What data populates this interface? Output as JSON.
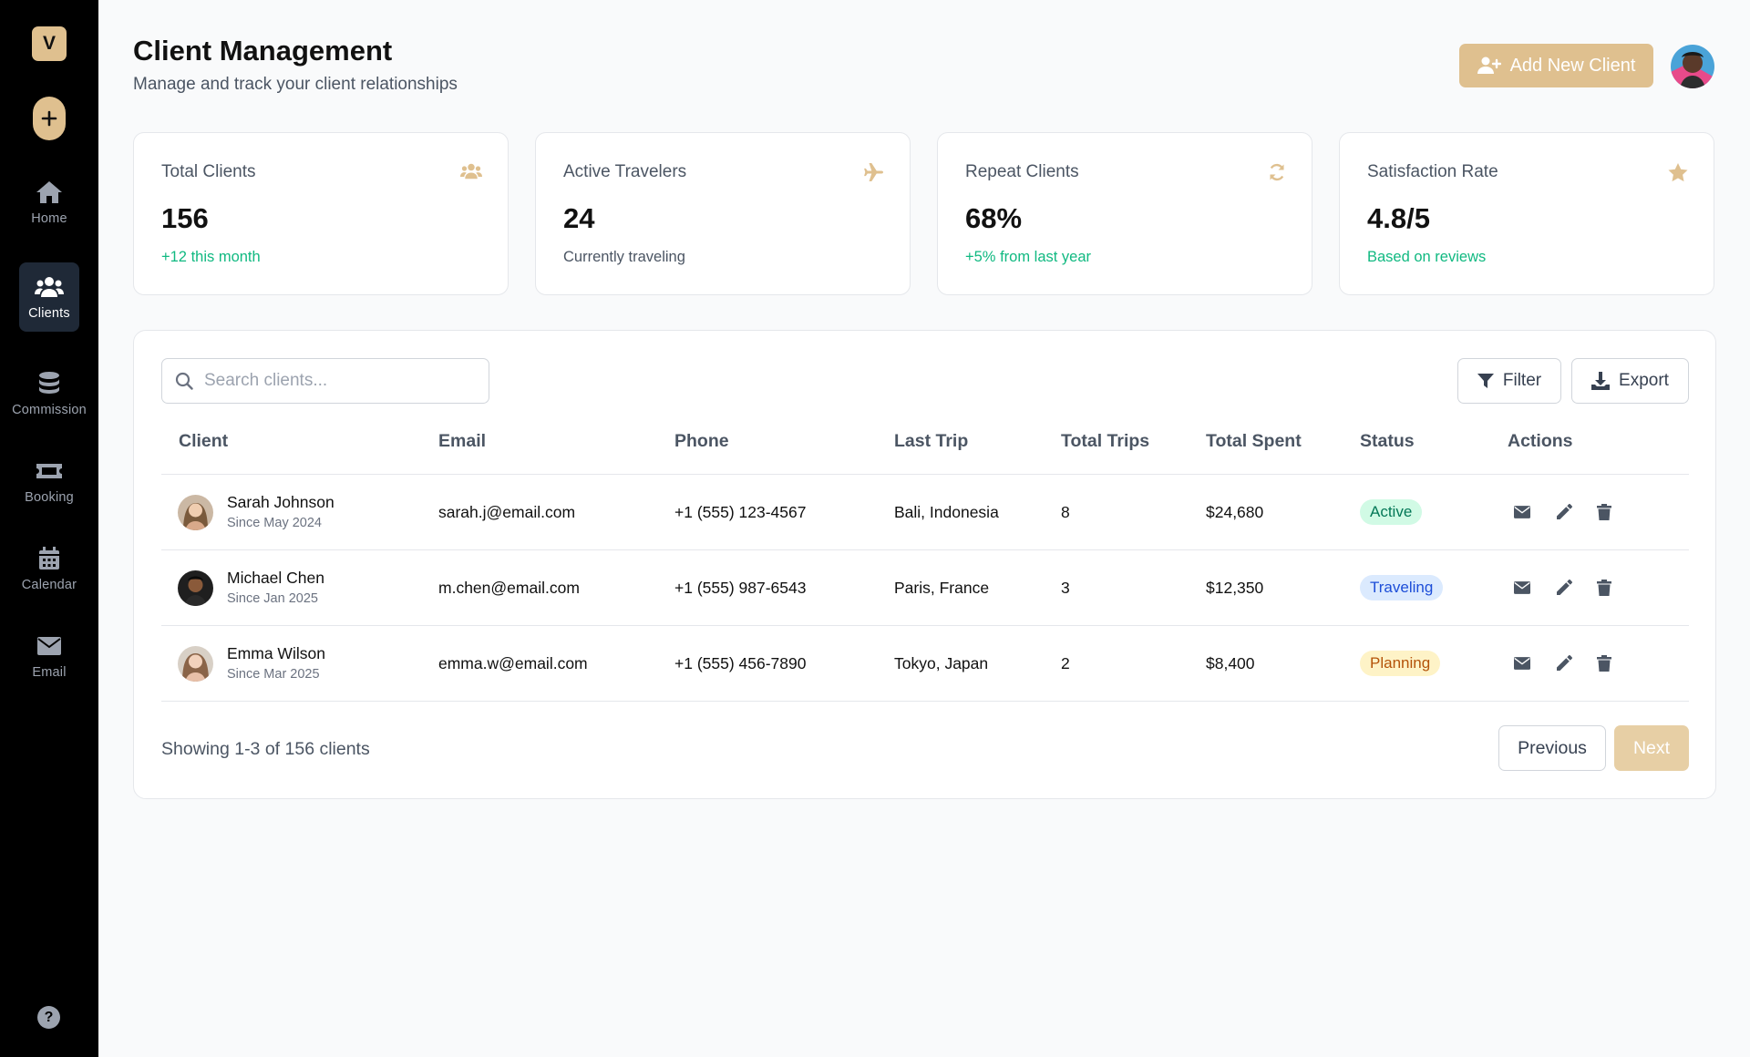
{
  "sidebar": {
    "logo": "V",
    "items": [
      {
        "label": "Home",
        "icon": "home-icon",
        "active": false
      },
      {
        "label": "Clients",
        "icon": "users-icon",
        "active": true
      },
      {
        "label": "Commission",
        "icon": "coins-icon",
        "active": false
      },
      {
        "label": "Booking",
        "icon": "ticket-icon",
        "active": false
      },
      {
        "label": "Calendar",
        "icon": "calendar-icon",
        "active": false
      },
      {
        "label": "Email",
        "icon": "envelope-icon",
        "active": false
      }
    ],
    "help": "?"
  },
  "header": {
    "title": "Client Management",
    "subtitle": "Manage and track your client relationships",
    "add_button": "Add New Client"
  },
  "stats": [
    {
      "label": "Total Clients",
      "value": "156",
      "note": "+12 this month",
      "note_color": "green",
      "icon": "users-icon"
    },
    {
      "label": "Active Travelers",
      "value": "24",
      "note": "Currently traveling",
      "note_color": "gray",
      "icon": "plane-icon"
    },
    {
      "label": "Repeat Clients",
      "value": "68%",
      "note": "+5% from last year",
      "note_color": "green",
      "icon": "refresh-icon"
    },
    {
      "label": "Satisfaction Rate",
      "value": "4.8/5",
      "note": "Based on reviews",
      "note_color": "green",
      "icon": "star-icon"
    }
  ],
  "table": {
    "search_placeholder": "Search clients...",
    "filter_label": "Filter",
    "export_label": "Export",
    "columns": [
      "Client",
      "Email",
      "Phone",
      "Last Trip",
      "Total Trips",
      "Total Spent",
      "Status",
      "Actions"
    ],
    "rows": [
      {
        "name": "Sarah Johnson",
        "since": "Since May 2024",
        "email": "sarah.j@email.com",
        "phone": "+1 (555) 123-4567",
        "last_trip": "Bali, Indonesia",
        "trips": "8",
        "spent": "$24,680",
        "status": "Active"
      },
      {
        "name": "Michael Chen",
        "since": "Since Jan 2025",
        "email": "m.chen@email.com",
        "phone": "+1 (555) 987-6543",
        "last_trip": "Paris, France",
        "trips": "3",
        "spent": "$12,350",
        "status": "Traveling"
      },
      {
        "name": "Emma Wilson",
        "since": "Since Mar 2025",
        "email": "emma.w@email.com",
        "phone": "+1 (555) 456-7890",
        "last_trip": "Tokyo, Japan",
        "trips": "2",
        "spent": "$8,400",
        "status": "Planning"
      }
    ],
    "showing": "Showing 1-3 of 156 clients",
    "prev_label": "Previous",
    "next_label": "Next"
  },
  "colors": {
    "accent": "#dfc08f",
    "sidebar_bg": "#000000",
    "active_badge_bg": "#d1fae5",
    "active_badge_fg": "#047857",
    "traveling_badge_bg": "#dbeafe",
    "traveling_badge_fg": "#1d4ed8",
    "planning_badge_bg": "#fef3c7",
    "planning_badge_fg": "#b45309"
  }
}
